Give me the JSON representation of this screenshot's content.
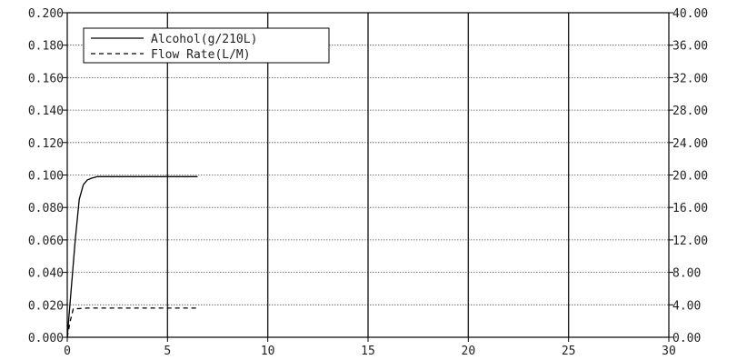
{
  "chart_data": {
    "type": "line",
    "title": "",
    "xlabel": "",
    "ylabel": "",
    "y2label": "",
    "xlim": [
      0,
      30
    ],
    "ylim": [
      0,
      0.2
    ],
    "y2lim": [
      0,
      40
    ],
    "grid": true,
    "legend_position": "top-left",
    "x_ticks": [
      "0",
      "5",
      "10",
      "15",
      "20",
      "25",
      "30"
    ],
    "y_ticks": [
      "0.000",
      "0.020",
      "0.040",
      "0.060",
      "0.080",
      "0.100",
      "0.120",
      "0.140",
      "0.160",
      "0.180",
      "0.200"
    ],
    "y2_ticks": [
      "0.00",
      "4.00",
      "8.00",
      "12.00",
      "16.00",
      "20.00",
      "24.00",
      "28.00",
      "32.00",
      "36.00",
      "40.00"
    ],
    "series": [
      {
        "name": "Alcohol(g/210L)",
        "axis": "left",
        "style": "solid",
        "color": "#000000",
        "x": [
          0.0,
          0.2,
          0.4,
          0.6,
          0.8,
          1.0,
          1.2,
          1.5,
          2.0,
          3.0,
          4.0,
          5.0,
          6.0,
          6.5
        ],
        "y": [
          0.0,
          0.03,
          0.06,
          0.085,
          0.094,
          0.097,
          0.098,
          0.099,
          0.099,
          0.099,
          0.099,
          0.099,
          0.099,
          0.099
        ]
      },
      {
        "name": "Flow Rate(L/M)",
        "axis": "right",
        "style": "dashed",
        "color": "#000000",
        "x": [
          0.0,
          0.15,
          0.3,
          1.0,
          3.0,
          5.0,
          6.5
        ],
        "y": [
          0.0,
          2.0,
          3.5,
          3.6,
          3.6,
          3.6,
          3.6
        ]
      }
    ]
  }
}
